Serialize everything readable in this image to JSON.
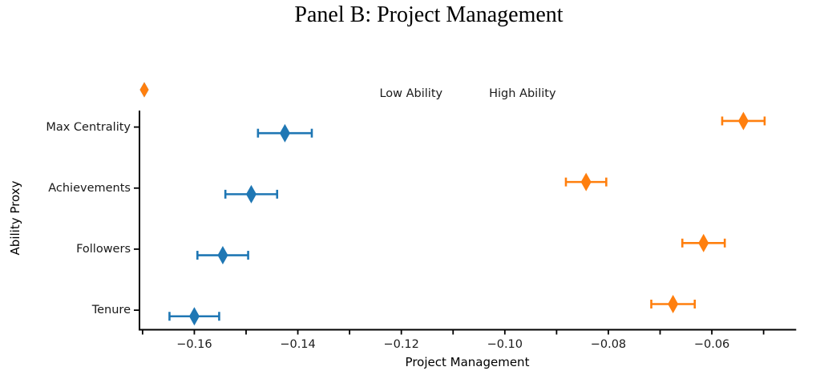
{
  "title": "Panel B: Project Management",
  "chart_data": {
    "type": "scatter",
    "subtype": "horizontal-dot-plot-with-error-bars",
    "title": "Panel B: Project Management",
    "xlabel": "Project Management",
    "ylabel": "Ability Proxy",
    "categories": [
      "Max Centrality",
      "Achievements",
      "Followers",
      "Tenure"
    ],
    "series": [
      {
        "name": "Low Ability",
        "color": "#1f77b4",
        "marker": "thin-diamond",
        "values": [
          -0.1425,
          -0.149,
          -0.1545,
          -0.16
        ],
        "errors": [
          0.0052,
          0.005,
          0.0049,
          0.0048
        ]
      },
      {
        "name": "High Ability",
        "color": "#ff7f0e",
        "marker": "thin-diamond",
        "values": [
          -0.0539,
          -0.0843,
          -0.0616,
          -0.0675
        ],
        "errors": [
          0.0041,
          0.0039,
          0.0041,
          0.0042
        ]
      }
    ],
    "xlim": [
      -0.1706,
      -0.0437
    ],
    "xticks": {
      "minor_start": -0.17,
      "minor_step": 0.01,
      "minor_count": 13,
      "labeled_values": [
        -0.16,
        -0.14,
        -0.12,
        -0.1,
        -0.08,
        -0.06
      ],
      "labels": [
        "−0.16",
        "−0.14",
        "−0.12",
        "−0.10",
        "−0.08",
        "−0.06"
      ]
    },
    "grid": false,
    "legend": {
      "position": "top-center",
      "entries": [
        {
          "label": "Low Ability",
          "color": "#1f77b4"
        },
        {
          "label": "High Ability",
          "color": "#ff7f0e"
        }
      ]
    }
  }
}
